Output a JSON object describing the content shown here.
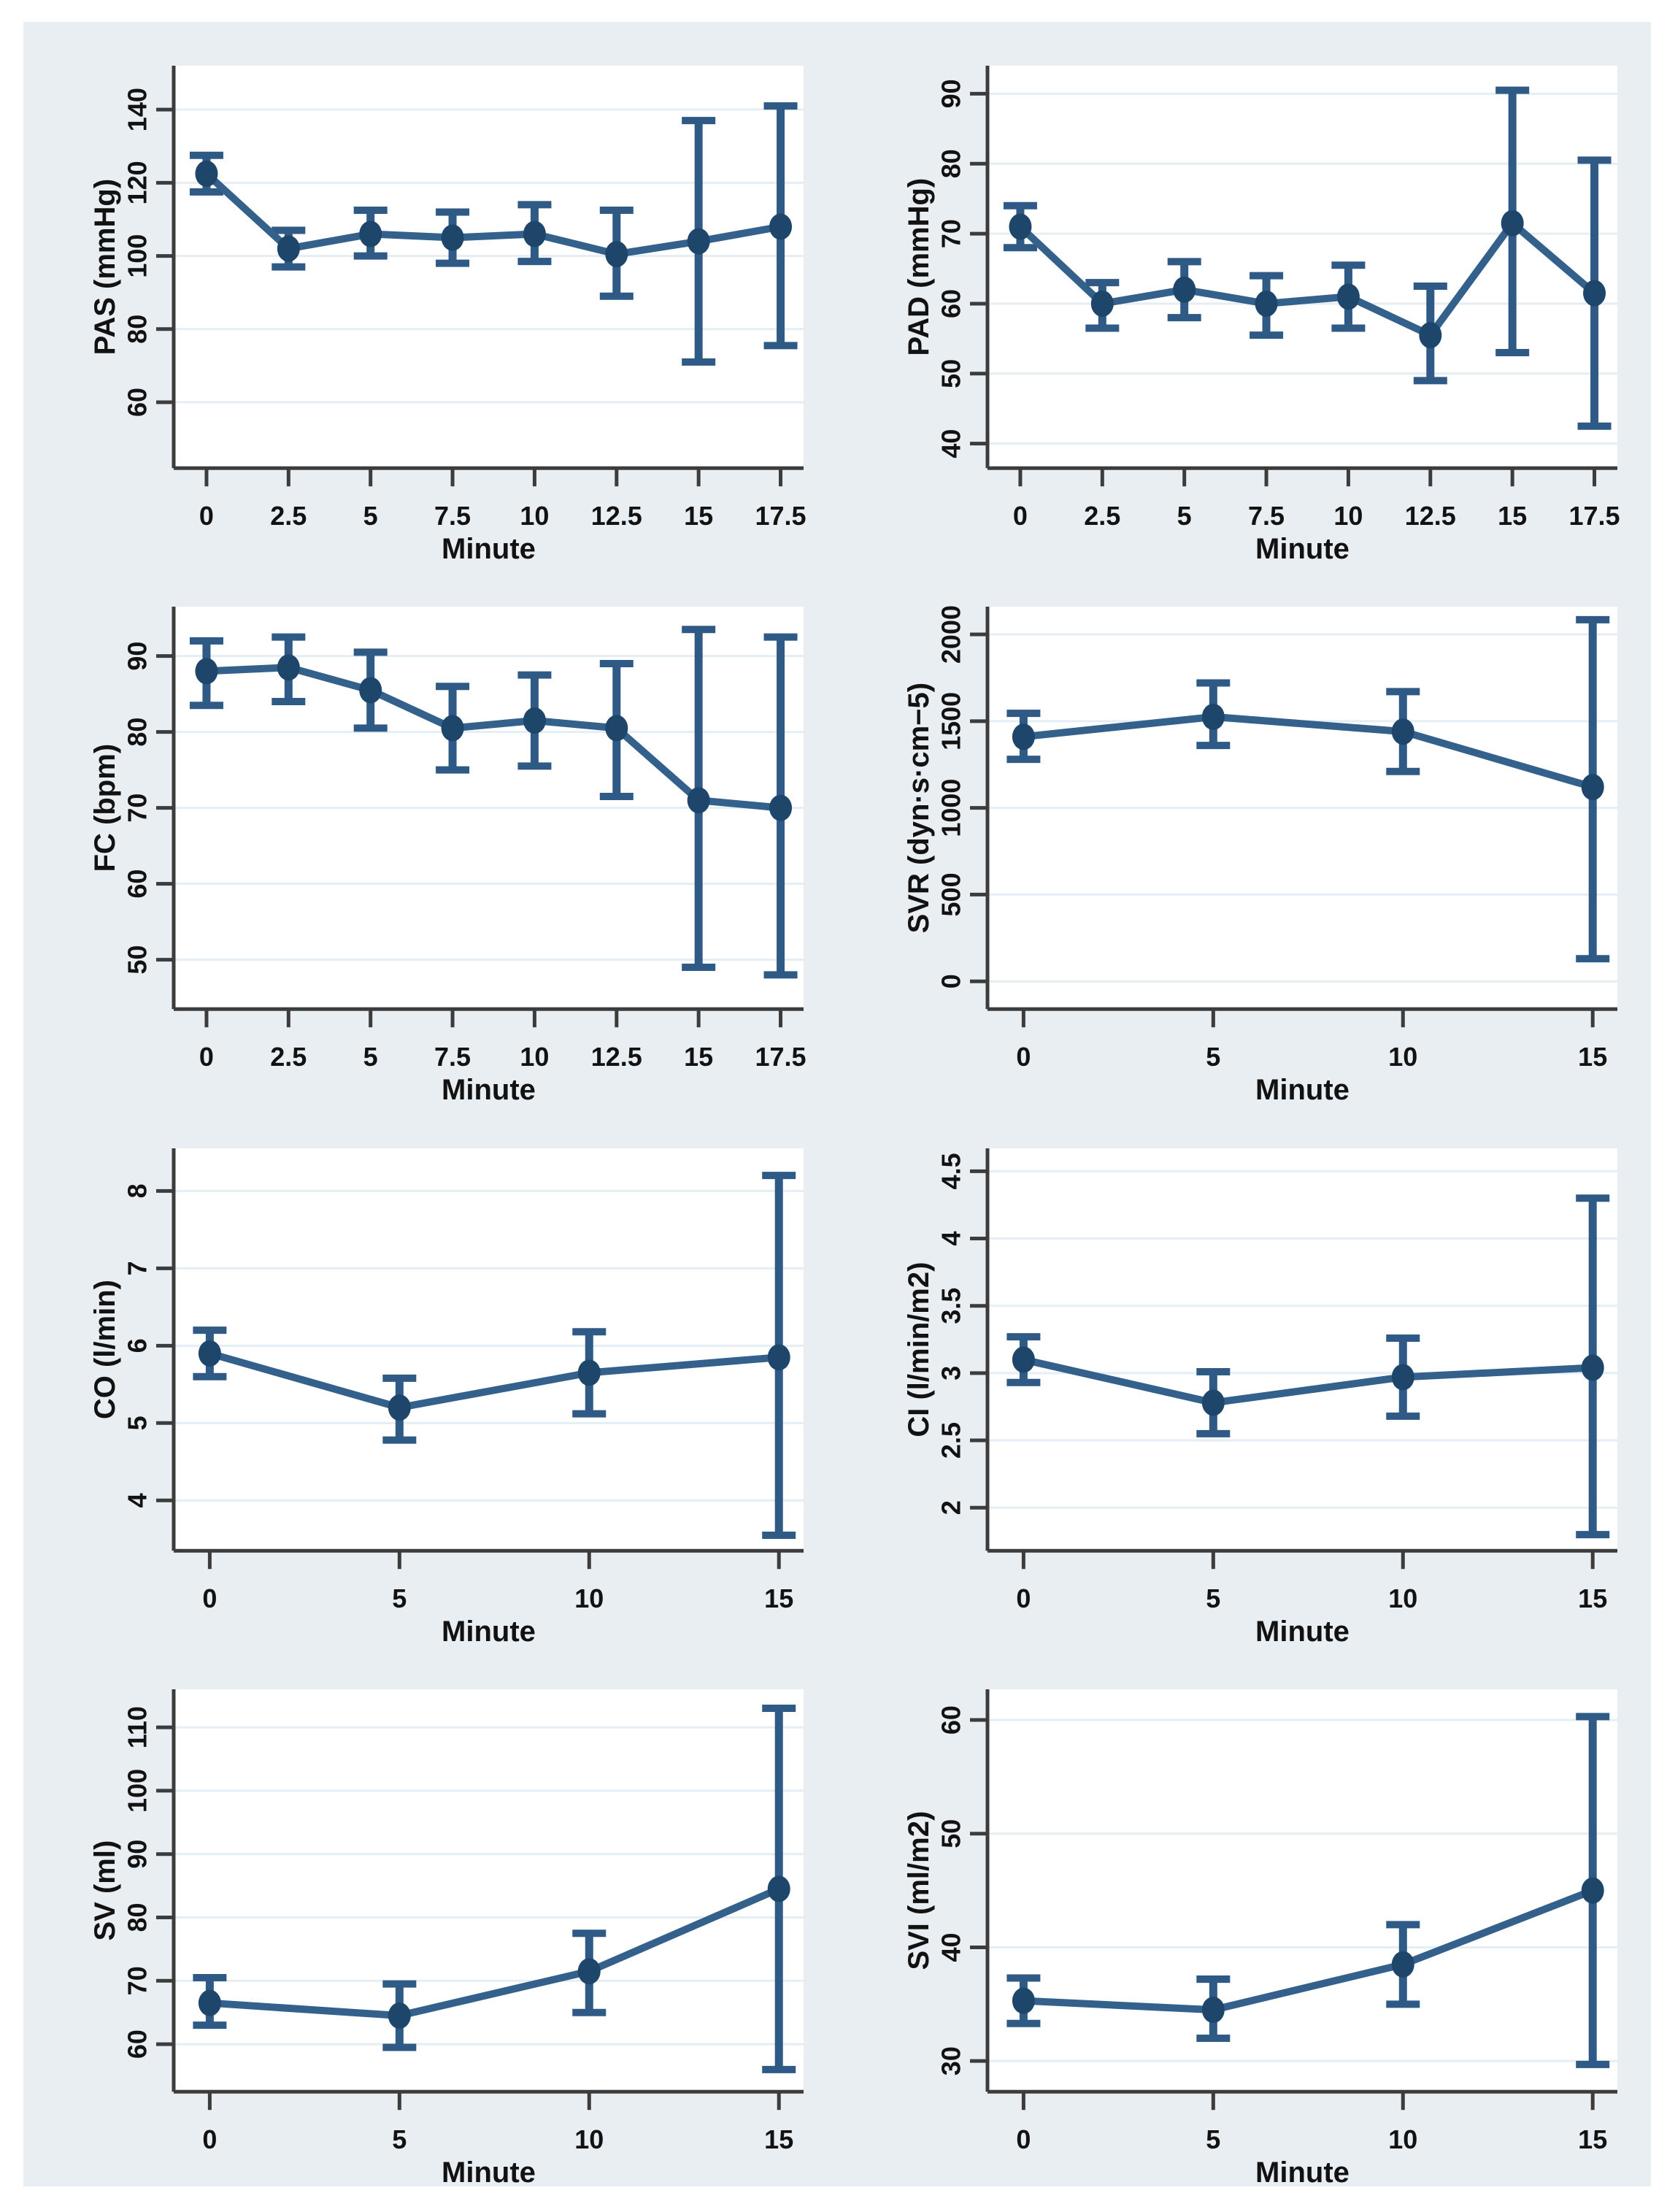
{
  "page": {
    "background_color": "#ffffff",
    "panel_background_color": "#e8eef2"
  },
  "chart_style": {
    "plot_background": "#ffffff",
    "grid_color": "#e4eef4",
    "axis_color": "#3c3c3c",
    "text_color": "#121212",
    "line_color": "#34608c",
    "marker_color": "#1e466b",
    "error_bar_color": "#2e5a85"
  },
  "chart_data": [
    {
      "type": "line",
      "id": "pas",
      "ylabel": "PAS (mmHg)",
      "xlabel": "Minute",
      "x": [
        0,
        2.5,
        5,
        7.5,
        10,
        12.5,
        15,
        17.5
      ],
      "y": [
        122.5,
        102,
        106,
        105,
        106,
        100.5,
        104,
        108
      ],
      "ci_low": [
        117.5,
        97,
        100,
        98,
        98.5,
        89,
        71,
        75.5
      ],
      "ci_high": [
        127.5,
        107,
        112.5,
        112,
        114,
        112.5,
        137,
        141
      ],
      "xticks": [
        0,
        2.5,
        5,
        7.5,
        10,
        12.5,
        15,
        17.5
      ],
      "yticks": [
        60,
        80,
        100,
        120,
        140
      ],
      "xlim": [
        -1,
        18.2
      ],
      "ylim": [
        42,
        152
      ],
      "grid": "horizontal",
      "legend": "none"
    },
    {
      "type": "line",
      "id": "pad",
      "ylabel": "PAD (mmHg)",
      "xlabel": "Minute",
      "x": [
        0,
        2.5,
        5,
        7.5,
        10,
        12.5,
        15,
        17.5
      ],
      "y": [
        71,
        60,
        62,
        60,
        61,
        55.5,
        71.5,
        61.5
      ],
      "ci_low": [
        68,
        56.5,
        58,
        55.5,
        56.5,
        49,
        53,
        42.5
      ],
      "ci_high": [
        74,
        63,
        66,
        64,
        65.5,
        62.5,
        90.5,
        80.5
      ],
      "xticks": [
        0,
        2.5,
        5,
        7.5,
        10,
        12.5,
        15,
        17.5
      ],
      "yticks": [
        40,
        50,
        60,
        70,
        80,
        90
      ],
      "xlim": [
        -1,
        18.2
      ],
      "ylim": [
        36.5,
        94
      ],
      "grid": "horizontal",
      "legend": "none"
    },
    {
      "type": "line",
      "id": "fc",
      "ylabel": "FC (bpm)",
      "xlabel": "Minute",
      "x": [
        0,
        2.5,
        5,
        7.5,
        10,
        12.5,
        15,
        17.5
      ],
      "y": [
        88,
        88.5,
        85.5,
        80.5,
        81.5,
        80.5,
        71,
        70
      ],
      "ci_low": [
        83.5,
        84,
        80.5,
        75,
        75.5,
        71.5,
        49,
        48
      ],
      "ci_high": [
        92,
        92.5,
        90.5,
        86,
        87.5,
        89,
        93.5,
        92.5
      ],
      "xticks": [
        0,
        2.5,
        5,
        7.5,
        10,
        12.5,
        15,
        17.5
      ],
      "yticks": [
        50,
        60,
        70,
        80,
        90
      ],
      "xlim": [
        -1,
        18.2
      ],
      "ylim": [
        43.5,
        96.5
      ],
      "grid": "horizontal",
      "legend": "none"
    },
    {
      "type": "line",
      "id": "svr",
      "ylabel": "SVR (dyn·s·cm−5)",
      "xlabel": "Minute",
      "x": [
        0,
        5,
        10,
        15
      ],
      "y": [
        1410,
        1525,
        1440,
        1120
      ],
      "ci_low": [
        1280,
        1360,
        1210,
        130
      ],
      "ci_high": [
        1545,
        1720,
        1670,
        2085
      ],
      "xticks": [
        0,
        5,
        10,
        15
      ],
      "yticks": [
        0,
        500,
        1000,
        1500,
        2000
      ],
      "xlim": [
        -0.95,
        15.65
      ],
      "ylim": [
        -160,
        2160
      ],
      "grid": "horizontal",
      "legend": "none"
    },
    {
      "type": "line",
      "id": "co",
      "ylabel": "CO (l/min)",
      "xlabel": "Minute",
      "x": [
        0,
        5,
        10,
        15
      ],
      "y": [
        5.9,
        5.2,
        5.65,
        5.85
      ],
      "ci_low": [
        5.6,
        4.78,
        5.12,
        3.55
      ],
      "ci_high": [
        6.2,
        5.58,
        6.18,
        8.2
      ],
      "xticks": [
        0,
        5,
        10,
        15
      ],
      "yticks": [
        4,
        5,
        6,
        7,
        8
      ],
      "xlim": [
        -0.95,
        15.65
      ],
      "ylim": [
        3.35,
        8.55
      ],
      "grid": "horizontal",
      "legend": "none"
    },
    {
      "type": "line",
      "id": "ci",
      "ylabel": "CI (l/min/m2)",
      "xlabel": "Minute",
      "x": [
        0,
        5,
        10,
        15
      ],
      "y": [
        3.1,
        2.78,
        2.97,
        3.04
      ],
      "ci_low": [
        2.93,
        2.55,
        2.68,
        1.8
      ],
      "ci_high": [
        3.27,
        3.01,
        3.26,
        4.3
      ],
      "xticks": [
        0,
        5,
        10,
        15
      ],
      "yticks": [
        2,
        2.5,
        3,
        3.5,
        4,
        4.5
      ],
      "xlim": [
        -0.95,
        15.65
      ],
      "ylim": [
        1.68,
        4.67
      ],
      "grid": "horizontal",
      "legend": "none"
    },
    {
      "type": "line",
      "id": "sv",
      "ylabel": "SV (ml)",
      "xlabel": "Minute",
      "x": [
        0,
        5,
        10,
        15
      ],
      "y": [
        66.5,
        64.5,
        71.5,
        84.5
      ],
      "ci_low": [
        63,
        59.5,
        65,
        56
      ],
      "ci_high": [
        70.5,
        69.5,
        77.5,
        113
      ],
      "xticks": [
        0,
        5,
        10,
        15
      ],
      "yticks": [
        60,
        70,
        80,
        90,
        100,
        110
      ],
      "xlim": [
        -0.95,
        15.65
      ],
      "ylim": [
        52.5,
        116
      ],
      "grid": "horizontal",
      "legend": "none"
    },
    {
      "type": "line",
      "id": "svi",
      "ylabel": "SVI (ml/m2)",
      "xlabel": "Minute",
      "x": [
        0,
        5,
        10,
        15
      ],
      "y": [
        35.3,
        34.5,
        38.5,
        45
      ],
      "ci_low": [
        33.3,
        32,
        35,
        29.7
      ],
      "ci_high": [
        37.3,
        37.2,
        42,
        60.3
      ],
      "xticks": [
        0,
        5,
        10,
        15
      ],
      "yticks": [
        30,
        40,
        50,
        60
      ],
      "xlim": [
        -0.95,
        15.65
      ],
      "ylim": [
        27.3,
        62.7
      ],
      "grid": "horizontal",
      "legend": "none"
    }
  ]
}
